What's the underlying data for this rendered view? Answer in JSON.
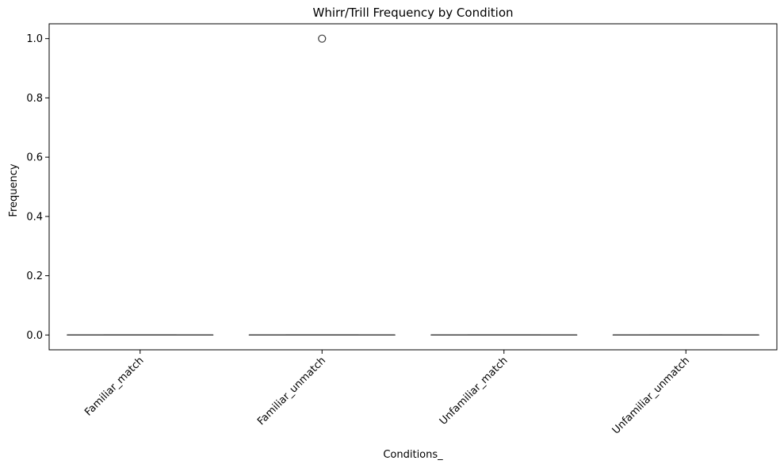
{
  "chart_data": {
    "type": "box",
    "title": "Whirr/Trill Frequency by Condition",
    "xlabel": "Conditions_",
    "ylabel": "Frequency",
    "categories": [
      "Familiar_match",
      "Familiar_unmatch",
      "Unfamiliar_match",
      "Unfamiliar_unmatch"
    ],
    "yticks": [
      "0.0",
      "0.2",
      "0.4",
      "0.6",
      "0.8",
      "1.0"
    ],
    "ylim": [
      -0.05,
      1.05
    ],
    "boxes": [
      {
        "category": "Familiar_match",
        "min": 0,
        "q1": 0,
        "median": 0,
        "q3": 0,
        "max": 0,
        "outliers": []
      },
      {
        "category": "Familiar_unmatch",
        "min": 0,
        "q1": 0,
        "median": 0,
        "q3": 0,
        "max": 0,
        "outliers": [
          1.0
        ]
      },
      {
        "category": "Unfamiliar_match",
        "min": 0,
        "q1": 0,
        "median": 0,
        "q3": 0,
        "max": 0,
        "outliers": []
      },
      {
        "category": "Unfamiliar_unmatch",
        "min": 0,
        "q1": 0,
        "median": 0,
        "q3": 0,
        "max": 0,
        "outliers": []
      }
    ],
    "grid": false,
    "legend": "none",
    "box_color": "#3a3a3a"
  }
}
